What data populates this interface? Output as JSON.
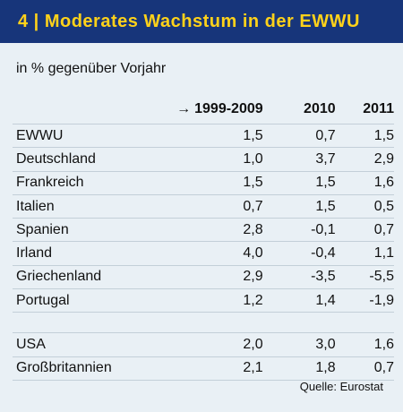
{
  "header": {
    "title": "4 | Moderates Wachstum in der EWWU"
  },
  "subtitle": "in % gegenüber Vorjahr",
  "source": "Quelle: Eurostat",
  "colors": {
    "header_bg": "#17357a",
    "header_text": "#ffd21a",
    "panel_bg": "#e9f0f5",
    "rule": "#c3cfd8"
  },
  "chart_data": {
    "type": "table",
    "title": "4 | Moderates Wachstum in der EWWU",
    "subtitle": "in % gegenüber Vorjahr",
    "columns": [
      "1999-2009",
      "2010",
      "2011"
    ],
    "column_arrow": "→",
    "group1": [
      {
        "label": "EWWU",
        "values": [
          "1,5",
          "0,7",
          "1,5"
        ]
      },
      {
        "label": "Deutschland",
        "values": [
          "1,0",
          "3,7",
          "2,9"
        ]
      },
      {
        "label": "Frankreich",
        "values": [
          "1,5",
          "1,5",
          "1,6"
        ]
      },
      {
        "label": "Italien",
        "values": [
          "0,7",
          "1,5",
          "0,5"
        ]
      },
      {
        "label": "Spanien",
        "values": [
          "2,8",
          "-0,1",
          "0,7"
        ]
      },
      {
        "label": "Irland",
        "values": [
          "4,0",
          "-0,4",
          "1,1"
        ]
      },
      {
        "label": "Griechenland",
        "values": [
          "2,9",
          "-3,5",
          "-5,5"
        ]
      },
      {
        "label": "Portugal",
        "values": [
          "1,2",
          "1,4",
          "-1,9"
        ]
      }
    ],
    "group2": [
      {
        "label": "USA",
        "values": [
          "2,0",
          "3,0",
          "1,6"
        ]
      },
      {
        "label": "Großbritannien",
        "values": [
          "2,1",
          "1,8",
          "0,7"
        ]
      }
    ],
    "source": "Quelle: Eurostat"
  }
}
